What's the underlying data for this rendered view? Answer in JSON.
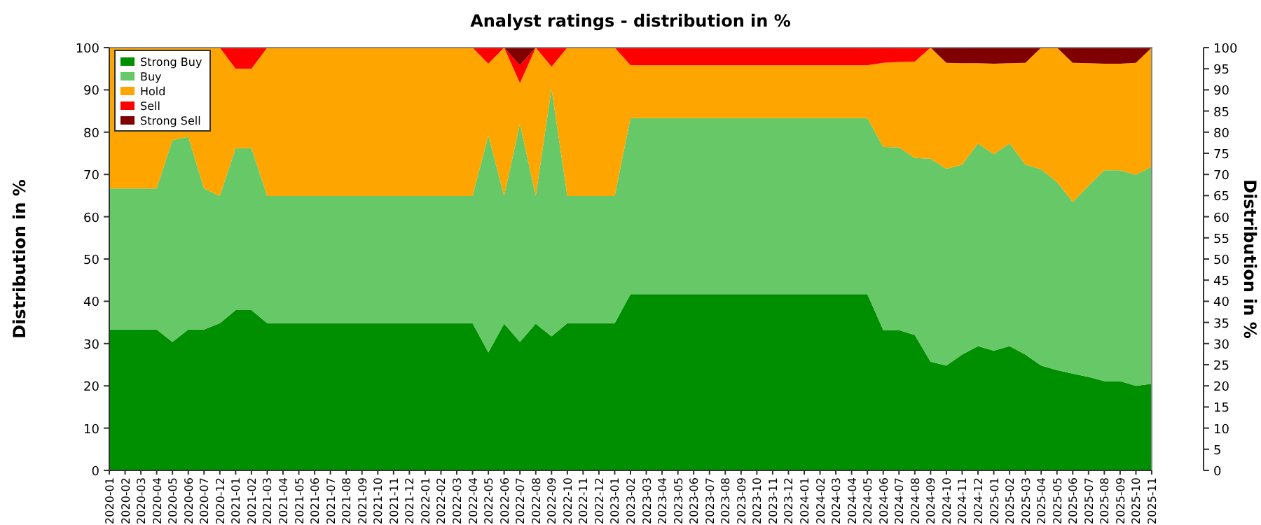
{
  "chart_data": {
    "type": "area",
    "stacked": true,
    "title": "Analyst ratings - distribution in %",
    "ylabel": "Distribution in %",
    "y2label": "Distribution in %",
    "categories": [
      "2020-01",
      "2020-02",
      "2020-03",
      "2020-04",
      "2020-05",
      "2020-06",
      "2020-07",
      "2020-12",
      "2021-01",
      "2021-02",
      "2021-03",
      "2021-04",
      "2021-05",
      "2021-06",
      "2021-07",
      "2021-08",
      "2021-09",
      "2021-10",
      "2021-11",
      "2021-12",
      "2022-01",
      "2022-02",
      "2022-03",
      "2022-04",
      "2022-05",
      "2022-06",
      "2022-07",
      "2022-08",
      "2022-09",
      "2022-10",
      "2022-11",
      "2022-12",
      "2023-01",
      "2023-02",
      "2023-03",
      "2023-04",
      "2023-05",
      "2023-06",
      "2023-07",
      "2023-08",
      "2023-09",
      "2023-10",
      "2023-11",
      "2023-12",
      "2024-01",
      "2024-02",
      "2024-03",
      "2024-04",
      "2024-05",
      "2024-06",
      "2024-07",
      "2024-08",
      "2024-09",
      "2024-10",
      "2024-11",
      "2024-12",
      "2025-01",
      "2025-02",
      "2025-03",
      "2025-04",
      "2025-05",
      "2025-06",
      "2025-07",
      "2025-08",
      "2025-09",
      "2025-10",
      "2025-11"
    ],
    "series": [
      {
        "name": "Strong Buy",
        "color": "#008f00",
        "values": [
          33.3,
          33.3,
          33.3,
          33.3,
          30.4,
          33.3,
          33.3,
          34.8,
          37.9,
          37.9,
          34.8,
          34.8,
          34.8,
          34.8,
          34.8,
          34.8,
          34.8,
          34.8,
          34.8,
          34.8,
          34.8,
          34.8,
          34.8,
          34.8,
          27.9,
          34.7,
          30.4,
          34.7,
          31.7,
          34.8,
          34.8,
          34.8,
          34.8,
          41.7,
          41.7,
          41.7,
          41.7,
          41.7,
          41.7,
          41.7,
          41.7,
          41.7,
          41.7,
          41.7,
          41.7,
          41.7,
          41.7,
          41.7,
          41.7,
          33.2,
          33.2,
          32.0,
          25.7,
          24.8,
          27.4,
          29.4,
          28.3,
          29.4,
          27.4,
          24.8,
          23.7,
          22.9,
          22.1,
          21.1,
          21.1,
          20.0,
          20.5
        ]
      },
      {
        "name": "Buy",
        "color": "#66c866",
        "values": [
          33.4,
          33.4,
          33.4,
          33.4,
          47.7,
          45.6,
          33.4,
          30.1,
          38.3,
          38.3,
          30.1,
          30.1,
          30.1,
          30.1,
          30.1,
          30.1,
          30.1,
          30.1,
          30.1,
          30.1,
          30.1,
          30.1,
          30.1,
          30.1,
          51.3,
          30.2,
          51.6,
          30.2,
          58.6,
          30.1,
          30.1,
          30.1,
          30.1,
          41.6,
          41.6,
          41.6,
          41.6,
          41.6,
          41.6,
          41.6,
          41.6,
          41.6,
          41.6,
          41.6,
          41.6,
          41.6,
          41.6,
          41.6,
          41.6,
          43.3,
          43.2,
          41.9,
          48.0,
          46.5,
          44.9,
          47.9,
          46.5,
          47.9,
          44.9,
          46.4,
          44.5,
          40.6,
          45.2,
          49.9,
          49.9,
          49.9,
          51.4
        ]
      },
      {
        "name": "Hold",
        "color": "#ffa500",
        "values": [
          33.3,
          33.3,
          33.3,
          33.3,
          21.9,
          21.1,
          33.3,
          35.1,
          18.8,
          18.8,
          35.1,
          35.1,
          35.1,
          35.1,
          35.1,
          35.1,
          35.1,
          35.1,
          35.1,
          35.1,
          35.1,
          35.1,
          35.1,
          35.1,
          17.0,
          35.1,
          9.6,
          35.1,
          5.2,
          35.1,
          35.1,
          35.1,
          35.1,
          12.5,
          12.5,
          12.5,
          12.5,
          12.5,
          12.5,
          12.5,
          12.5,
          12.5,
          12.5,
          12.5,
          12.5,
          12.5,
          12.5,
          12.5,
          12.5,
          19.9,
          20.2,
          22.8,
          26.3,
          25.1,
          24.0,
          19.0,
          21.4,
          19.0,
          24.1,
          28.8,
          31.8,
          32.9,
          29.0,
          25.2,
          25.2,
          26.5,
          28.1
        ]
      },
      {
        "name": "Sell",
        "color": "#ff0000",
        "values": [
          0,
          0,
          0,
          0,
          0,
          0,
          0,
          0,
          5.0,
          5.0,
          0,
          0,
          0,
          0,
          0,
          0,
          0,
          0,
          0,
          0,
          0,
          0,
          0,
          0,
          3.8,
          0,
          4.2,
          0,
          4.5,
          0,
          0,
          0,
          0,
          4.2,
          4.2,
          4.2,
          4.2,
          4.2,
          4.2,
          4.2,
          4.2,
          4.2,
          4.2,
          4.2,
          4.2,
          4.2,
          4.2,
          4.2,
          4.2,
          3.6,
          3.4,
          3.3,
          0,
          0,
          0,
          0,
          0,
          0,
          0,
          0,
          0,
          0,
          0,
          0,
          0,
          0,
          0
        ]
      },
      {
        "name": "Strong Sell",
        "color": "#800000",
        "values": [
          0,
          0,
          0,
          0,
          0,
          0,
          0,
          0,
          0,
          0,
          0,
          0,
          0,
          0,
          0,
          0,
          0,
          0,
          0,
          0,
          0,
          0,
          0,
          0,
          0,
          0,
          4.2,
          0,
          0,
          0,
          0,
          0,
          0,
          0,
          0,
          0,
          0,
          0,
          0,
          0,
          0,
          0,
          0,
          0,
          0,
          0,
          0,
          0,
          0,
          0,
          0,
          0,
          0,
          3.6,
          3.7,
          3.7,
          3.8,
          3.7,
          3.6,
          0,
          0,
          3.6,
          3.7,
          3.8,
          3.8,
          3.6,
          0
        ]
      }
    ],
    "ylim": [
      0,
      100
    ],
    "yticks": [
      0,
      10,
      20,
      30,
      40,
      50,
      60,
      70,
      80,
      90,
      100
    ],
    "y2lim": [
      0,
      100
    ],
    "y2ticks": [
      0,
      5,
      10,
      15,
      20,
      25,
      30,
      35,
      40,
      45,
      50,
      55,
      60,
      65,
      70,
      75,
      80,
      85,
      90,
      95,
      100
    ],
    "grid": "y",
    "legend": "top left"
  }
}
